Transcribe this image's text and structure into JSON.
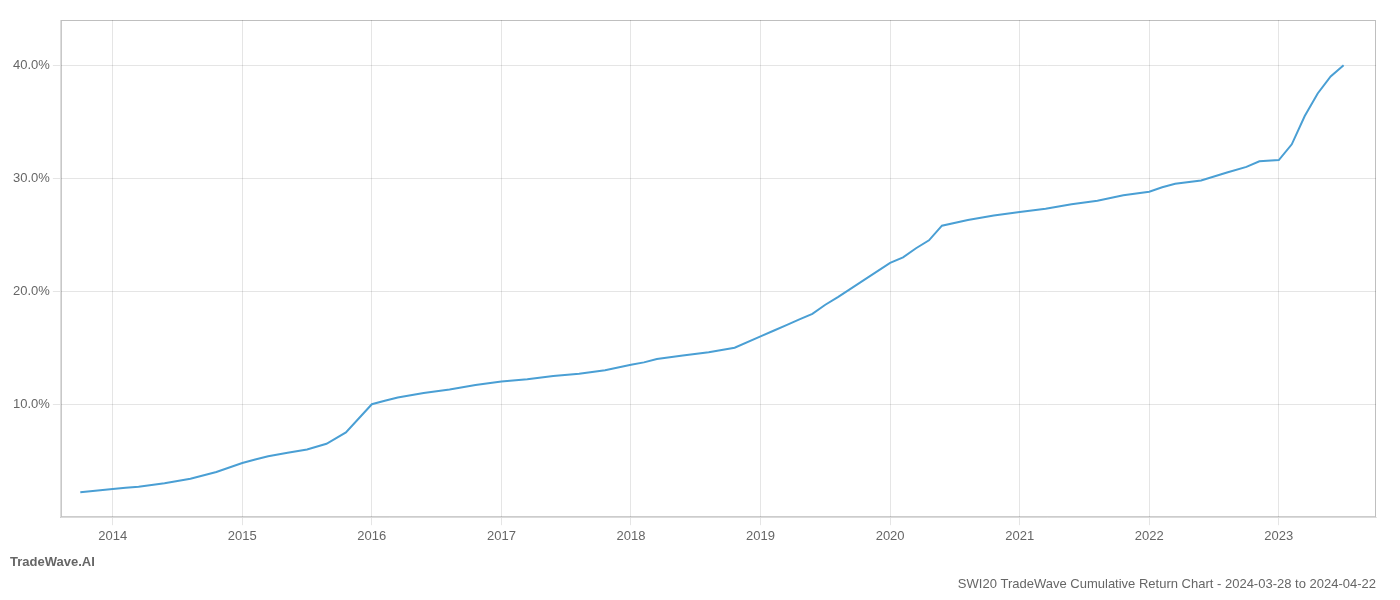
{
  "chart_data": {
    "type": "line",
    "title": "SWI20 TradeWave Cumulative Return Chart - 2024-03-28 to 2024-04-22",
    "annotations": [
      "TradeWave.AI"
    ],
    "color": "#4a9fd4",
    "x": [
      2013.75,
      2014.0,
      2014.1,
      2014.2,
      2014.4,
      2014.6,
      2014.8,
      2015.0,
      2015.1,
      2015.2,
      2015.35,
      2015.5,
      2015.65,
      2015.8,
      2016.0,
      2016.1,
      2016.2,
      2016.4,
      2016.6,
      2016.8,
      2017.0,
      2017.2,
      2017.4,
      2017.6,
      2017.8,
      2018.0,
      2018.1,
      2018.2,
      2018.4,
      2018.6,
      2018.8,
      2019.0,
      2019.1,
      2019.2,
      2019.3,
      2019.4,
      2019.5,
      2019.6,
      2019.8,
      2020.0,
      2020.1,
      2020.2,
      2020.3,
      2020.4,
      2020.6,
      2020.8,
      2021.0,
      2021.2,
      2021.4,
      2021.6,
      2021.8,
      2022.0,
      2022.1,
      2022.2,
      2022.4,
      2022.6,
      2022.75,
      2022.85,
      2023.0,
      2023.1,
      2023.2,
      2023.3,
      2023.4,
      2023.5
    ],
    "values": [
      2.2,
      2.5,
      2.6,
      2.7,
      3.0,
      3.4,
      4.0,
      4.8,
      5.1,
      5.4,
      5.7,
      6.0,
      6.5,
      7.5,
      10.0,
      10.3,
      10.6,
      11.0,
      11.3,
      11.7,
      12.0,
      12.2,
      12.5,
      12.7,
      13.0,
      13.5,
      13.7,
      14.0,
      14.3,
      14.6,
      15.0,
      16.0,
      16.5,
      17.0,
      17.5,
      18.0,
      18.8,
      19.5,
      21.0,
      22.5,
      23.0,
      23.8,
      24.5,
      25.8,
      26.3,
      26.7,
      27.0,
      27.3,
      27.7,
      28.0,
      28.5,
      28.8,
      29.2,
      29.5,
      29.8,
      30.5,
      31.0,
      31.5,
      31.6,
      33.0,
      35.5,
      37.5,
      39.0,
      40.0
    ],
    "xlim": [
      2013.6,
      2023.75
    ],
    "ylim": [
      0,
      44
    ],
    "xticks": [
      2014,
      2015,
      2016,
      2017,
      2018,
      2019,
      2020,
      2021,
      2022,
      2023
    ],
    "yticks": [
      {
        "value": 10.0,
        "label": "10.0%"
      },
      {
        "value": 20.0,
        "label": "20.0%"
      },
      {
        "value": 30.0,
        "label": "30.0%"
      },
      {
        "value": 40.0,
        "label": "40.0%"
      }
    ],
    "grid": true
  }
}
